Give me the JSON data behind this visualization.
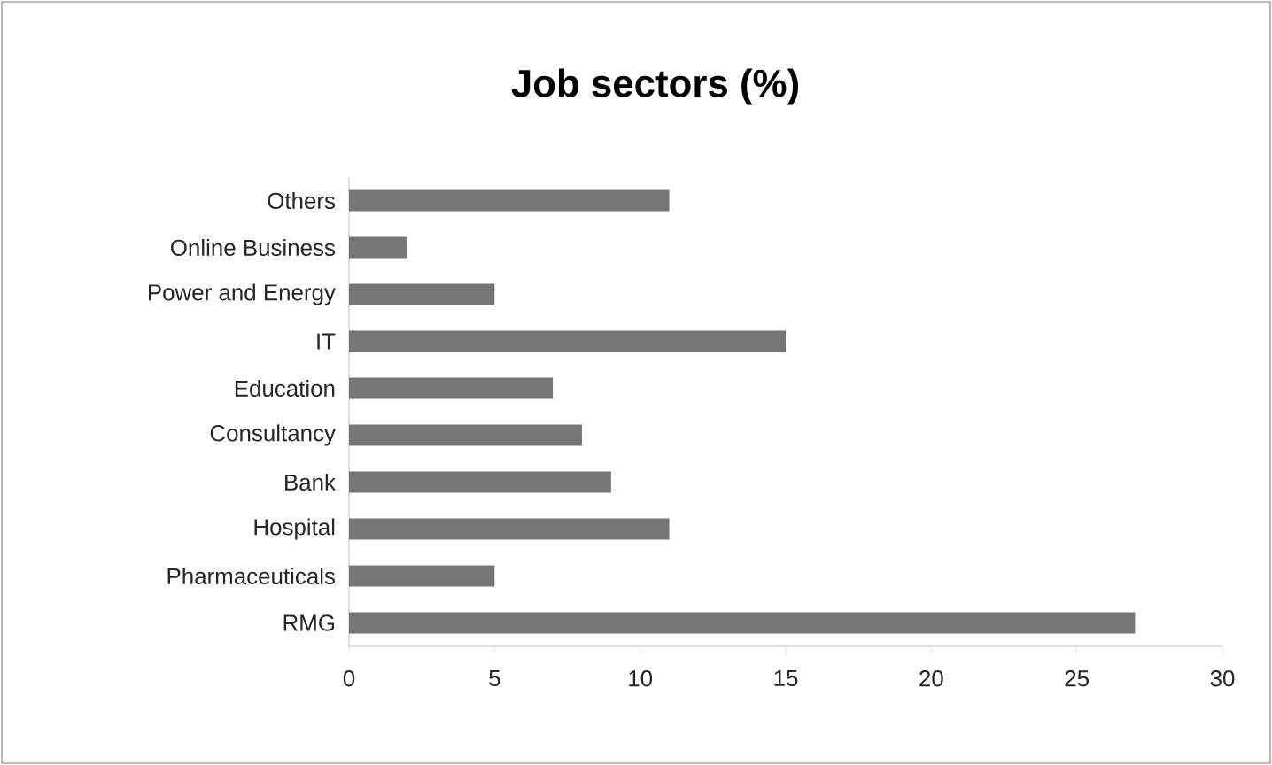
{
  "chart_data": {
    "type": "bar",
    "orientation": "horizontal",
    "title": "Job sectors (%)",
    "categories": [
      "Others",
      "Online Business",
      "Power and Energy",
      "IT",
      "Education",
      "Consultancy",
      "Bank",
      "Hospital",
      "Pharmaceuticals",
      "RMG"
    ],
    "values": [
      11,
      2,
      5,
      15,
      7,
      8,
      9,
      11,
      5,
      27
    ],
    "color": "#767676",
    "xlim": [
      0,
      30
    ],
    "xticks": [
      0,
      5,
      10,
      15,
      20,
      25,
      30
    ],
    "grid": false
  }
}
